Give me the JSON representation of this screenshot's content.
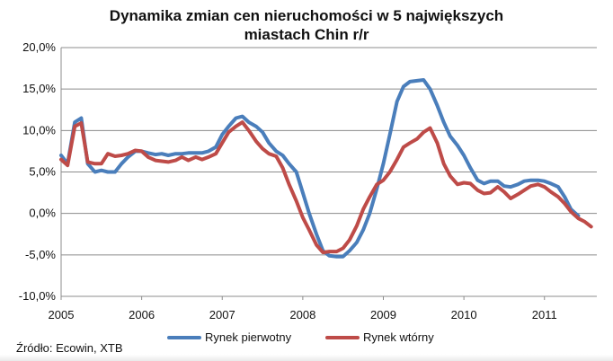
{
  "chart_data": {
    "type": "line",
    "title_lines": [
      "Dynamika zmian cen nieruchomości w 5 największych",
      "miastach Chin r/r"
    ],
    "xlabel": "",
    "ylabel": "",
    "source": "Źródło: Ecowin, XTB",
    "x_ticks": [
      "2005",
      "2006",
      "2007",
      "2008",
      "2009",
      "2010",
      "2011"
    ],
    "y_ticks": [
      "20,0%",
      "15,0%",
      "10,0%",
      "5,0%",
      "0,0%",
      "-5,0%",
      "-10,0%"
    ],
    "ylim": [
      -10,
      20
    ],
    "xlim": [
      2005.0,
      2011.65
    ],
    "grid": true,
    "legend_position": "bottom",
    "series": [
      {
        "name": "Rynek pierwotny",
        "color": "#4a7ebb",
        "x": [
          2005.0,
          2005.08,
          2005.17,
          2005.25,
          2005.33,
          2005.42,
          2005.5,
          2005.58,
          2005.67,
          2005.75,
          2005.83,
          2005.92,
          2006.0,
          2006.08,
          2006.17,
          2006.25,
          2006.33,
          2006.42,
          2006.5,
          2006.58,
          2006.67,
          2006.75,
          2006.83,
          2006.92,
          2007.0,
          2007.08,
          2007.17,
          2007.25,
          2007.33,
          2007.42,
          2007.5,
          2007.58,
          2007.67,
          2007.75,
          2007.83,
          2007.92,
          2008.0,
          2008.08,
          2008.17,
          2008.25,
          2008.33,
          2008.42,
          2008.5,
          2008.58,
          2008.67,
          2008.75,
          2008.83,
          2008.92,
          2009.0,
          2009.08,
          2009.17,
          2009.25,
          2009.33,
          2009.42,
          2009.5,
          2009.58,
          2009.67,
          2009.75,
          2009.83,
          2009.92,
          2010.0,
          2010.08,
          2010.17,
          2010.25,
          2010.33,
          2010.42,
          2010.5,
          2010.58,
          2010.67,
          2010.75,
          2010.83,
          2010.92,
          2011.0,
          2011.08,
          2011.17,
          2011.25,
          2011.33,
          2011.42,
          2011.5,
          2011.58
        ],
        "values": [
          7.0,
          6.0,
          11.0,
          11.5,
          6.0,
          5.0,
          5.2,
          5.0,
          5.0,
          6.0,
          6.8,
          7.5,
          7.5,
          7.3,
          7.1,
          7.2,
          7.0,
          7.2,
          7.2,
          7.3,
          7.3,
          7.3,
          7.5,
          8.0,
          9.5,
          10.5,
          11.5,
          11.7,
          11.0,
          10.5,
          9.8,
          8.5,
          7.5,
          7.0,
          6.0,
          5.0,
          2.5,
          0.0,
          -2.5,
          -4.5,
          -5.1,
          -5.2,
          -5.2,
          -4.5,
          -3.5,
          -2.0,
          0.0,
          3.0,
          6.0,
          9.5,
          13.5,
          15.3,
          15.9,
          16.0,
          16.1,
          15.0,
          13.0,
          11.0,
          9.3,
          8.2,
          7.0,
          5.5,
          4.0,
          3.6,
          3.9,
          3.9,
          3.3,
          3.2,
          3.5,
          3.9,
          4.0,
          4.0,
          3.9,
          3.6,
          3.2,
          2.0,
          0.5,
          -0.3,
          null,
          null
        ]
      },
      {
        "name": "Rynek wtórny",
        "color": "#be4b48",
        "x": [
          2005.0,
          2005.08,
          2005.17,
          2005.25,
          2005.33,
          2005.42,
          2005.5,
          2005.58,
          2005.67,
          2005.75,
          2005.83,
          2005.92,
          2006.0,
          2006.08,
          2006.17,
          2006.25,
          2006.33,
          2006.42,
          2006.5,
          2006.58,
          2006.67,
          2006.75,
          2006.83,
          2006.92,
          2007.0,
          2007.08,
          2007.17,
          2007.25,
          2007.33,
          2007.42,
          2007.5,
          2007.58,
          2007.67,
          2007.75,
          2007.83,
          2007.92,
          2008.0,
          2008.08,
          2008.17,
          2008.25,
          2008.33,
          2008.42,
          2008.5,
          2008.58,
          2008.67,
          2008.75,
          2008.83,
          2008.92,
          2009.0,
          2009.08,
          2009.17,
          2009.25,
          2009.33,
          2009.42,
          2009.5,
          2009.58,
          2009.67,
          2009.75,
          2009.83,
          2009.92,
          2010.0,
          2010.08,
          2010.17,
          2010.25,
          2010.33,
          2010.42,
          2010.5,
          2010.58,
          2010.67,
          2010.75,
          2010.83,
          2010.92,
          2011.0,
          2011.08,
          2011.17,
          2011.25,
          2011.33,
          2011.42,
          2011.5,
          2011.58
        ],
        "values": [
          6.5,
          5.8,
          10.5,
          10.9,
          6.2,
          6.0,
          6.0,
          7.2,
          6.9,
          7.0,
          7.2,
          7.6,
          7.5,
          6.8,
          6.4,
          6.3,
          6.2,
          6.4,
          6.8,
          6.4,
          6.8,
          6.5,
          6.8,
          7.2,
          8.5,
          9.8,
          10.5,
          11.0,
          10.0,
          8.7,
          7.8,
          7.2,
          6.9,
          5.5,
          3.5,
          1.5,
          -0.5,
          -2.0,
          -3.8,
          -4.7,
          -4.6,
          -4.6,
          -4.2,
          -3.2,
          -1.5,
          0.5,
          2.0,
          3.5,
          4.0,
          5.0,
          6.5,
          8.0,
          8.5,
          9.0,
          9.8,
          10.3,
          8.5,
          6.0,
          4.5,
          3.5,
          3.7,
          3.6,
          2.8,
          2.4,
          2.5,
          3.2,
          2.6,
          1.8,
          2.3,
          2.8,
          3.3,
          3.5,
          3.2,
          2.6,
          2.0,
          1.2,
          0.2,
          -0.6,
          -1.0,
          -1.6
        ]
      }
    ]
  }
}
